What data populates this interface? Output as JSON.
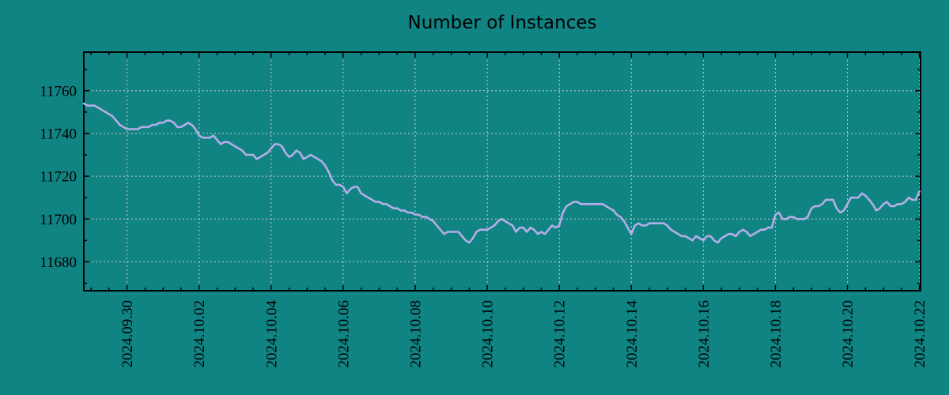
{
  "chart_data": {
    "type": "line",
    "title": "Number of Instances",
    "series_name": "instances",
    "x_unit": "days since 2024-09-28 00:00",
    "x_start": 0.8,
    "x_step": 0.1,
    "values": [
      11754,
      11753,
      11753,
      11753,
      11752,
      11751,
      11750,
      11749,
      11748,
      11746,
      11744,
      11743,
      11742,
      11742,
      11742,
      11742,
      11743,
      11743,
      11743,
      11744,
      11744,
      11745,
      11745,
      11746,
      11746,
      11745,
      11743,
      11743,
      11744,
      11745,
      11744,
      11742,
      11739,
      11738,
      11738,
      11738,
      11739,
      11737,
      11735,
      11736,
      11736,
      11735,
      11734,
      11733,
      11732,
      11730,
      11730,
      11730,
      11728,
      11729,
      11730,
      11731,
      11733,
      11735,
      11735,
      11734,
      11731,
      11729,
      11730,
      11732,
      11731,
      11728,
      11729,
      11730,
      11729,
      11728,
      11727,
      11725,
      11722,
      11718,
      11716,
      11716,
      11715,
      11712,
      11714,
      11715,
      11715,
      11712,
      11711,
      11710,
      11709,
      11708,
      11708,
      11707,
      11707,
      11706,
      11705,
      11705,
      11704,
      11704,
      11703,
      11703,
      11702,
      11702,
      11701,
      11701,
      11700,
      11699,
      11697,
      11695,
      11693,
      11694,
      11694,
      11694,
      11694,
      11692,
      11690,
      11689,
      11691,
      11694,
      11695,
      11695,
      11695,
      11696,
      11697,
      11699,
      11700,
      11699,
      11698,
      11697,
      11694,
      11696,
      11696,
      11694,
      11696,
      11695,
      11693,
      11694,
      11693,
      11695,
      11697,
      11696,
      11697,
      11703,
      11706,
      11707,
      11708,
      11708,
      11707,
      11707,
      11707,
      11707,
      11707,
      11707,
      11707,
      11706,
      11705,
      11704,
      11702,
      11701,
      11699,
      11696,
      11693,
      11697,
      11698,
      11697,
      11697,
      11698,
      11698,
      11698,
      11698,
      11698,
      11697,
      11695,
      11694,
      11693,
      11692,
      11692,
      11691,
      11690,
      11692,
      11691,
      11690,
      11692,
      11692,
      11690,
      11689,
      11691,
      11692,
      11693,
      11693,
      11692,
      11694,
      11695,
      11694,
      11692,
      11693,
      11694,
      11695,
      11695,
      11696,
      11696,
      11702,
      11703,
      11700,
      11700,
      11701,
      11701,
      11700,
      11700,
      11700,
      11701,
      11705,
      11706,
      11706,
      11707,
      11709,
      11709,
      11709,
      11705,
      11703,
      11704,
      11707,
      11710,
      11710,
      11710,
      11712,
      11711,
      11709,
      11707,
      11704,
      11705,
      11707,
      11708,
      11706,
      11706,
      11707,
      11707,
      11708,
      11710,
      11709,
      11709,
      11713
    ],
    "x_ticks": [
      {
        "day": 2,
        "label": "2024.09.30"
      },
      {
        "day": 4,
        "label": "2024.10.02"
      },
      {
        "day": 6,
        "label": "2024.10.04"
      },
      {
        "day": 8,
        "label": "2024.10.06"
      },
      {
        "day": 10,
        "label": "2024.10.08"
      },
      {
        "day": 12,
        "label": "2024.10.10"
      },
      {
        "day": 14,
        "label": "2024.10.12"
      },
      {
        "day": 16,
        "label": "2024.10.14"
      },
      {
        "day": 18,
        "label": "2024.10.16"
      },
      {
        "day": 20,
        "label": "2024.10.18"
      },
      {
        "day": 22,
        "label": "2024.10.20"
      },
      {
        "day": 24,
        "label": "2024.10.22"
      }
    ],
    "y_ticks": [
      11680,
      11700,
      11720,
      11740,
      11760
    ],
    "x_minor_step": 0.5,
    "y_minor_step": 10,
    "xlim": [
      0.8,
      24.03
    ],
    "ylim": [
      11666.5,
      11778
    ],
    "grid": true,
    "legend": "none",
    "colors": {
      "background": "#108383",
      "line": "#b4aee8",
      "grid": "#cbcbcb",
      "axis": "#000000",
      "text": "#000000"
    }
  }
}
